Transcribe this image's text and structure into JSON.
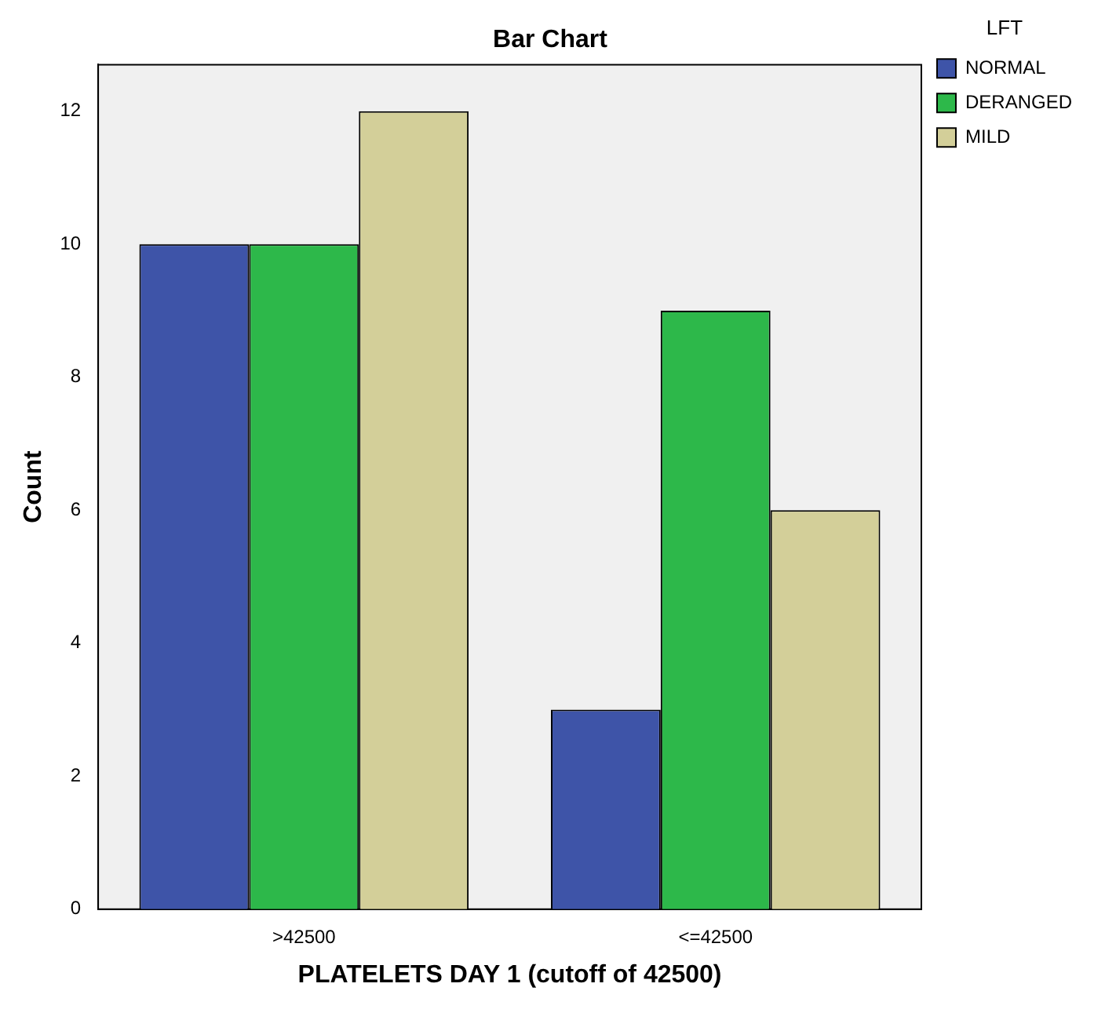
{
  "chart_data": {
    "type": "bar",
    "title": "Bar Chart",
    "xlabel": "PLATELETS DAY 1 (cutoff of 42500)",
    "ylabel": "Count",
    "legend_title": "LFT",
    "categories": [
      ">42500",
      "<=42500"
    ],
    "series": [
      {
        "name": "NORMAL",
        "color": "#3e54a8",
        "values": [
          10,
          3
        ]
      },
      {
        "name": "DERANGED",
        "color": "#2db84a",
        "values": [
          10,
          9
        ]
      },
      {
        "name": "MILD",
        "color": "#d3cf99",
        "values": [
          12,
          6
        ]
      }
    ],
    "ylim": [
      0,
      12.7
    ],
    "yticks": [
      0,
      2,
      4,
      6,
      8,
      10,
      12
    ],
    "grid": false,
    "legend": "top right"
  }
}
